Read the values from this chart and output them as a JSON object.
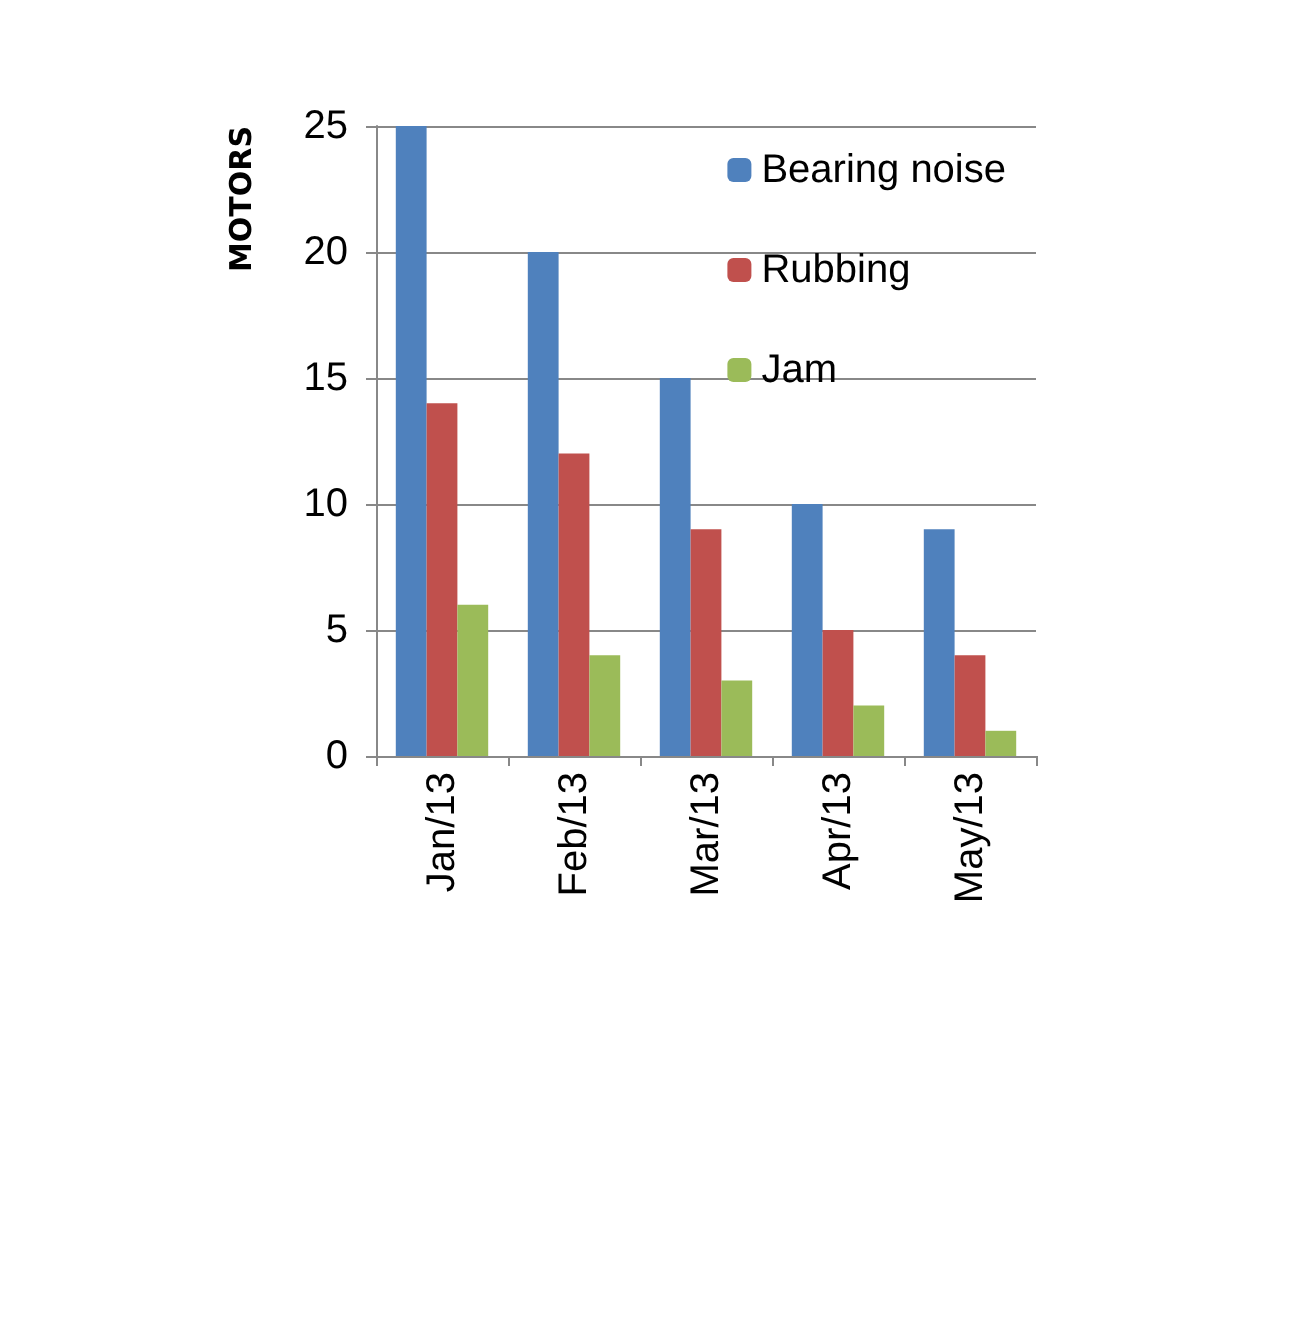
{
  "chart_data": {
    "type": "bar",
    "ylabel": "MOTORS",
    "categories": [
      "Jan/13",
      "Feb/13",
      "Mar/13",
      "Apr/13",
      "May/13"
    ],
    "series": [
      {
        "name": "Bearing noise",
        "color": "#4f81bd",
        "values": [
          25,
          20,
          15,
          10,
          9
        ]
      },
      {
        "name": "Rubbing",
        "color": "#c0504d",
        "values": [
          14,
          12,
          9,
          5,
          4
        ]
      },
      {
        "name": "Jam",
        "color": "#9bbb59",
        "values": [
          6,
          4,
          3,
          2,
          1
        ]
      }
    ],
    "ylim": [
      0,
      25
    ],
    "yticks": [
      0,
      5,
      10,
      15,
      20,
      25
    ],
    "grid": "y",
    "legend": "top right"
  }
}
